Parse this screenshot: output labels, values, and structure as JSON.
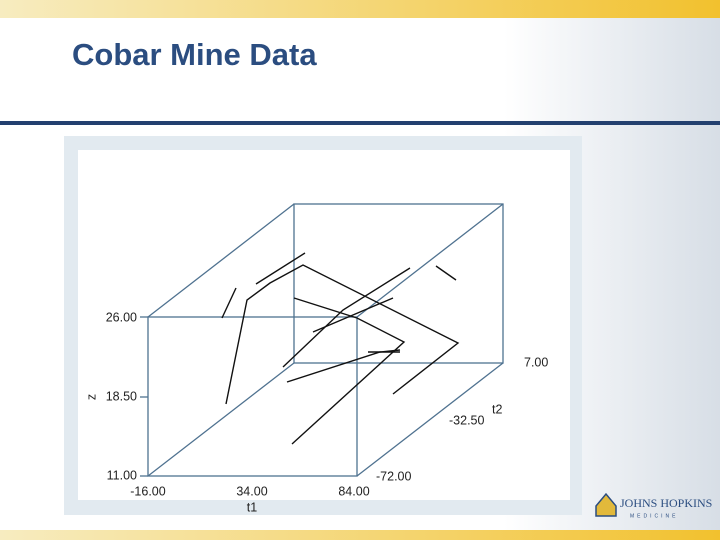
{
  "header": {
    "title": "Cobar Mine Data"
  },
  "plot": {
    "z_label": "z",
    "z_ticks": [
      "26.00",
      "18.50",
      "11.00"
    ],
    "t1_label": "t1",
    "t1_ticks": [
      "-16.00",
      "34.00",
      "84.00"
    ],
    "t2_label": "t2",
    "t2_ticks": [
      "-72.00",
      "-32.50",
      "7.00"
    ]
  },
  "footer": {
    "logo": "JOHNS HOPKINS",
    "logo_sub": "MEDICINE"
  }
}
